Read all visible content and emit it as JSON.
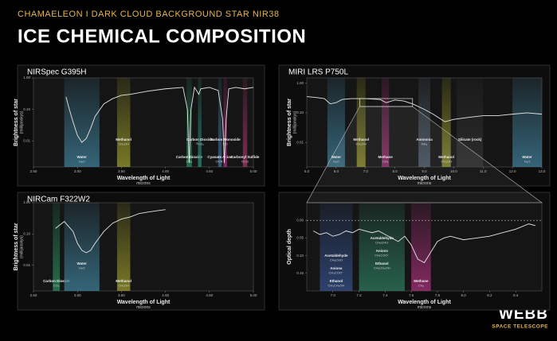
{
  "header": {
    "subtitle": "CHAMAELEON I DARK CLOUD BACKGROUND STAR NIR38",
    "title": "ICE CHEMICAL COMPOSITION"
  },
  "logo": {
    "name": "WEBB",
    "tagline": "SPACE TELESCOPE"
  },
  "chart_data": [
    {
      "type": "line",
      "title": "NIRSpec G395H",
      "x_label": "Wavelength of Light",
      "x_unit": "microns",
      "y_label": "Brightness of star",
      "y_unit": "(millijanskys)",
      "log_y": true,
      "color": "#e6e6e6",
      "xlim": [
        2.5,
        5.0
      ],
      "xticks": [
        {
          "value": 2.5,
          "label": "2.50"
        },
        {
          "value": 3.0,
          "label": "3.00"
        },
        {
          "value": 3.5,
          "label": "3.50"
        },
        {
          "value": 4.0,
          "label": "4.00"
        },
        {
          "value": 4.5,
          "label": "4.50"
        },
        {
          "value": 5.0,
          "label": "5.00"
        }
      ],
      "ylim": [
        0.0015,
        1
      ],
      "yticks": [
        {
          "value": 0.01,
          "label": "0.01"
        },
        {
          "value": 0.1,
          "label": "0.10"
        },
        {
          "value": 1,
          "label": "1.00"
        }
      ],
      "x": [
        2.87,
        2.9,
        2.95,
        3.0,
        3.05,
        3.1,
        3.15,
        3.2,
        3.3,
        3.4,
        3.5,
        3.6,
        3.8,
        4.0,
        4.2,
        4.25,
        4.27,
        4.29,
        4.33,
        4.38,
        4.4,
        4.5,
        4.6,
        4.65,
        4.67,
        4.69,
        4.72,
        4.8,
        4.9,
        5.0
      ],
      "values": [
        0.25,
        0.12,
        0.04,
        0.015,
        0.009,
        0.012,
        0.025,
        0.06,
        0.15,
        0.22,
        0.28,
        0.3,
        0.38,
        0.45,
        0.5,
        0.1,
        0.002,
        0.1,
        0.5,
        0.3,
        0.45,
        0.5,
        0.4,
        0.05,
        0.002,
        0.05,
        0.45,
        0.5,
        0.45,
        0.5
      ],
      "bands": [
        {
          "range": [
            2.85,
            3.25
          ],
          "color": "#3f7f99",
          "labels": [
            {
              "name": "Water",
              "formula": "H₂O"
            }
          ]
        },
        {
          "range": [
            3.45,
            3.6
          ],
          "color": "#9a9a2c",
          "labels": [
            {
              "name": "Methanol",
              "formula": "CH₃OH"
            }
          ]
        },
        {
          "range": [
            4.24,
            4.3
          ],
          "color": "#2d8a5e",
          "labels": [
            {
              "name": "Carbon Dioxide",
              "formula": "CO₂"
            }
          ]
        },
        {
          "range": [
            4.37,
            4.41
          ],
          "color": "#2d8a7a",
          "labels": [
            {
              "name": "Carbon Dioxide",
              "formula": "¹³CO₂"
            }
          ]
        },
        {
          "range": [
            4.6,
            4.64
          ],
          "color": "#3f6f99",
          "labels": [
            {
              "name": "Cyanate Anion",
              "formula": "OCN⁻"
            }
          ]
        },
        {
          "range": [
            4.66,
            4.7
          ],
          "color": "#a8307a",
          "labels": [
            {
              "name": "Carbon Monoxide",
              "formula": "CO"
            }
          ]
        },
        {
          "range": [
            4.88,
            4.93
          ],
          "color": "#a8306a",
          "labels": [
            {
              "name": "Carbonyl Sulfide",
              "formula": "OCS"
            }
          ]
        }
      ]
    },
    {
      "type": "line",
      "title": "MIRI LRS P750L",
      "x_label": "Wavelength of Light",
      "x_unit": "microns",
      "y_label": "Brightness of star",
      "y_unit": "(millijanskys)",
      "log_y": true,
      "color": "#e6e6e6",
      "xlim": [
        5,
        13
      ],
      "xticks": [
        {
          "value": 5,
          "label": "5.0"
        },
        {
          "value": 6,
          "label": "6.0"
        },
        {
          "value": 7,
          "label": "7.0"
        },
        {
          "value": 8,
          "label": "8.0"
        },
        {
          "value": 9,
          "label": "9.0"
        },
        {
          "value": 10,
          "label": "10.0"
        },
        {
          "value": 11,
          "label": "11.0"
        },
        {
          "value": 12,
          "label": "12.0"
        },
        {
          "value": 13,
          "label": "13.0"
        }
      ],
      "ylim": [
        0.0015,
        1.5
      ],
      "yticks": [
        {
          "value": 0.01,
          "label": "0.01"
        },
        {
          "value": 0.1,
          "label": "0.10"
        },
        {
          "value": 1,
          "label": "1.00"
        }
      ],
      "x": [
        5.0,
        5.3,
        5.6,
        5.8,
        6.0,
        6.2,
        6.5,
        7.0,
        7.5,
        7.7,
        8.0,
        8.3,
        8.6,
        9.0,
        9.3,
        9.7,
        10.0,
        10.5,
        11.0,
        11.5,
        12.0,
        12.5,
        13.0
      ],
      "values": [
        0.35,
        0.33,
        0.3,
        0.2,
        0.22,
        0.28,
        0.3,
        0.3,
        0.28,
        0.22,
        0.27,
        0.25,
        0.2,
        0.13,
        0.09,
        0.05,
        0.06,
        0.07,
        0.08,
        0.08,
        0.09,
        0.1,
        0.09
      ],
      "bands": [
        {
          "range": [
            5.7,
            6.3
          ],
          "color": "#3f7f99",
          "labels": [
            {
              "name": "Water",
              "formula": "H₂O"
            }
          ]
        },
        {
          "range": [
            6.7,
            7.0
          ],
          "color": "#9a9a2c",
          "labels": [
            {
              "name": "Methanol",
              "formula": "CH₃OH"
            }
          ]
        },
        {
          "range": [
            7.55,
            7.8
          ],
          "color": "#a8307a",
          "labels": [
            {
              "name": "Methane",
              "formula": "CH₄"
            }
          ]
        },
        {
          "range": [
            8.8,
            9.2
          ],
          "color": "#556677",
          "labels": [
            {
              "name": "Ammonia",
              "formula": "NH₃"
            }
          ]
        },
        {
          "range": [
            9.6,
            9.9
          ],
          "color": "#9a9a2c",
          "labels": [
            {
              "name": "Methanol",
              "formula": "CH₃OH"
            }
          ]
        },
        {
          "range": [
            10.1,
            11.0
          ],
          "color": "#333333",
          "labels": [
            {
              "name": "Silicate (rock)"
            }
          ]
        },
        {
          "range": [
            12.0,
            13.0
          ],
          "color": "#3f7f99",
          "labels": [
            {
              "name": "Water",
              "formula": "H₂O"
            }
          ]
        }
      ]
    },
    {
      "type": "line",
      "title": "NIRCam F322W2",
      "x_label": "Wavelength of Light",
      "x_unit": "microns",
      "y_label": "Brightness of star",
      "y_unit": "(millijanskys)",
      "log_y": true,
      "color": "#e6e6e6",
      "xlim": [
        2.5,
        5.0
      ],
      "xticks": [
        {
          "value": 2.5,
          "label": "2.50"
        },
        {
          "value": 3.0,
          "label": "3.00"
        },
        {
          "value": 3.5,
          "label": "3.50"
        },
        {
          "value": 4.0,
          "label": "4.00"
        },
        {
          "value": 4.5,
          "label": "4.50"
        },
        {
          "value": 5.0,
          "label": "5.00"
        }
      ],
      "ylim": [
        0.0015,
        1
      ],
      "yticks": [
        {
          "value": 0.01,
          "label": "0.01"
        },
        {
          "value": 0.1,
          "label": "0.10"
        },
        {
          "value": 1,
          "label": "1.00"
        }
      ],
      "x": [
        2.75,
        2.85,
        2.95,
        3.0,
        3.05,
        3.1,
        3.15,
        3.2,
        3.3,
        3.4,
        3.5,
        3.6,
        3.7,
        3.8,
        3.9,
        4.0
      ],
      "values": [
        0.15,
        0.25,
        0.12,
        0.05,
        0.03,
        0.025,
        0.03,
        0.05,
        0.12,
        0.22,
        0.3,
        0.35,
        0.45,
        0.5,
        0.55,
        0.6
      ],
      "bands": [
        {
          "range": [
            2.72,
            2.8
          ],
          "color": "#2d8a5e",
          "labels": [
            {
              "name": "Carbon Dioxide",
              "formula": "CO₂"
            }
          ]
        },
        {
          "range": [
            2.85,
            3.25
          ],
          "color": "#3f7f99",
          "labels": [
            {
              "name": "Water",
              "formula": "H₂O"
            }
          ]
        },
        {
          "range": [
            3.45,
            3.6
          ],
          "color": "#9a9a2c",
          "labels": [
            {
              "name": "Methanol",
              "formula": "CH₃OH"
            }
          ]
        }
      ]
    },
    {
      "type": "line",
      "x_label": "Wavelength of Light",
      "x_unit": "microns",
      "y_label": "Optical depth",
      "log_y": false,
      "invert_y": true,
      "zero_line": true,
      "color": "#e6e6e6",
      "xlim": [
        6.8,
        8.6
      ],
      "xticks": [
        {
          "value": 7.0,
          "label": "7.0"
        },
        {
          "value": 7.2,
          "label": "7.2"
        },
        {
          "value": 7.4,
          "label": "7.4"
        },
        {
          "value": 7.6,
          "label": "7.6"
        },
        {
          "value": 7.8,
          "label": "7.8"
        },
        {
          "value": 8.0,
          "label": "8.0"
        },
        {
          "value": 8.2,
          "label": "8.2"
        },
        {
          "value": 8.4,
          "label": "8.4"
        }
      ],
      "ylim": [
        -0.05,
        0.2
      ],
      "yticks": [
        {
          "value": 0,
          "label": "0.00"
        },
        {
          "value": 0.05,
          "label": "0.05"
        },
        {
          "value": 0.1,
          "label": "0.10"
        },
        {
          "value": 0.15,
          "label": "0.15"
        }
      ],
      "x": [
        6.85,
        6.9,
        6.95,
        7.0,
        7.05,
        7.1,
        7.15,
        7.2,
        7.25,
        7.3,
        7.35,
        7.4,
        7.45,
        7.5,
        7.55,
        7.6,
        7.65,
        7.7,
        7.75,
        7.8,
        7.85,
        7.9,
        7.95,
        8.0,
        8.1,
        8.2,
        8.3,
        8.4,
        8.5,
        8.55
      ],
      "values": [
        0.03,
        0.04,
        0.035,
        0.045,
        0.04,
        0.03,
        0.035,
        0.025,
        0.03,
        0.035,
        0.03,
        0.04,
        0.05,
        0.06,
        0.045,
        0.07,
        0.11,
        0.12,
        0.09,
        0.06,
        0.05,
        0.045,
        0.05,
        0.055,
        0.05,
        0.045,
        0.035,
        0.025,
        0.01,
        0.015
      ],
      "bands": [
        {
          "range": [
            6.9,
            7.15
          ],
          "color": "#34508a",
          "labels": [
            {
              "name": "Acetaldehyde",
              "formula": "CH₃CHO"
            },
            {
              "name": "Anions",
              "formula": "CH₃COO⁻"
            },
            {
              "name": "Ethanol",
              "formula": "CH₃CH₂OH"
            }
          ]
        },
        {
          "range": [
            7.2,
            7.55
          ],
          "color": "#2d7a5e",
          "labels": [
            {
              "name": "Acetaldehyde",
              "formula": "CH₃CHO"
            },
            {
              "name": "Anions",
              "formula": "CH₃COO⁻"
            },
            {
              "name": "Ethanol",
              "formula": "CH₃CH₂OH"
            }
          ]
        },
        {
          "range": [
            7.6,
            7.75
          ],
          "color": "#a8307a",
          "labels": [
            {
              "name": "Methane",
              "formula": "CH₄"
            }
          ]
        }
      ]
    }
  ]
}
